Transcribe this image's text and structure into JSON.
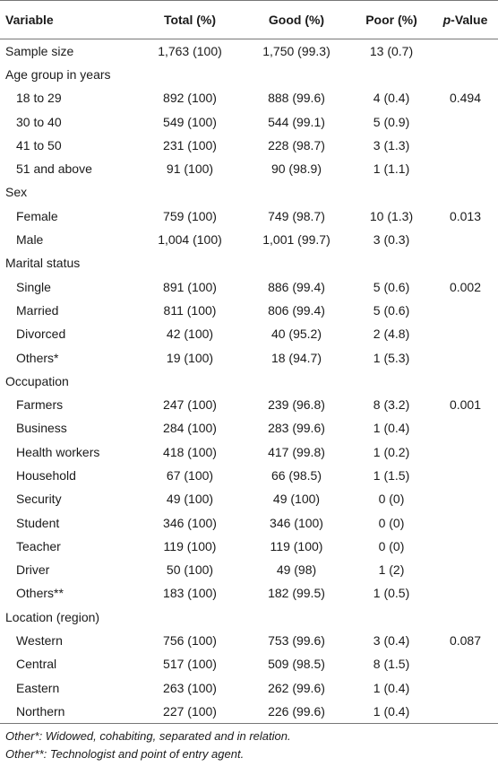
{
  "headers": {
    "variable": "Variable",
    "total": "Total (%)",
    "good": "Good (%)",
    "poor": "Poor (%)",
    "pvalue_italic": "p",
    "pvalue_rest": "-Value"
  },
  "rows": [
    {
      "label": "Sample size",
      "total": "1,763 (100)",
      "good": "1,750 (99.3)",
      "poor": "13 (0.7)",
      "p": ""
    },
    {
      "label": "Age group in years",
      "total": "",
      "good": "",
      "poor": "",
      "p": ""
    },
    {
      "label": "18 to 29",
      "total": "892 (100)",
      "good": "888 (99.6)",
      "poor": "4 (0.4)",
      "p": "0.494"
    },
    {
      "label": "30 to 40",
      "total": "549 (100)",
      "good": "544 (99.1)",
      "poor": "5 (0.9)",
      "p": ""
    },
    {
      "label": "41 to 50",
      "total": "231 (100)",
      "good": "228 (98.7)",
      "poor": "3 (1.3)",
      "p": ""
    },
    {
      "label": "51 and above",
      "total": "91 (100)",
      "good": "90 (98.9)",
      "poor": "1 (1.1)",
      "p": ""
    },
    {
      "label": "Sex",
      "total": "",
      "good": "",
      "poor": "",
      "p": ""
    },
    {
      "label": "Female",
      "total": "759 (100)",
      "good": "749 (98.7)",
      "poor": "10 (1.3)",
      "p": "0.013"
    },
    {
      "label": "Male",
      "total": "1,004 (100)",
      "good": "1,001 (99.7)",
      "poor": "3 (0.3)",
      "p": ""
    },
    {
      "label": "Marital status",
      "total": "",
      "good": "",
      "poor": "",
      "p": ""
    },
    {
      "label": "Single",
      "total": "891 (100)",
      "good": "886 (99.4)",
      "poor": "5 (0.6)",
      "p": "0.002"
    },
    {
      "label": "Married",
      "total": "811 (100)",
      "good": "806 (99.4)",
      "poor": "5 (0.6)",
      "p": ""
    },
    {
      "label": "Divorced",
      "total": "42 (100)",
      "good": "40 (95.2)",
      "poor": "2 (4.8)",
      "p": ""
    },
    {
      "label": "Others*",
      "total": "19 (100)",
      "good": "18 (94.7)",
      "poor": "1 (5.3)",
      "p": ""
    },
    {
      "label": "Occupation",
      "total": "",
      "good": "",
      "poor": "",
      "p": ""
    },
    {
      "label": "Farmers",
      "total": "247 (100)",
      "good": "239 (96.8)",
      "poor": "8 (3.2)",
      "p": "0.001"
    },
    {
      "label": "Business",
      "total": "284 (100)",
      "good": "283 (99.6)",
      "poor": "1 (0.4)",
      "p": ""
    },
    {
      "label": "Health workers",
      "total": "418 (100)",
      "good": "417 (99.8)",
      "poor": "1 (0.2)",
      "p": ""
    },
    {
      "label": "Household",
      "total": "67 (100)",
      "good": "66 (98.5)",
      "poor": "1 (1.5)",
      "p": ""
    },
    {
      "label": "Security",
      "total": "49 (100)",
      "good": "49 (100)",
      "poor": "0 (0)",
      "p": ""
    },
    {
      "label": "Student",
      "total": "346 (100)",
      "good": "346 (100)",
      "poor": "0 (0)",
      "p": ""
    },
    {
      "label": "Teacher",
      "total": "119 (100)",
      "good": "119 (100)",
      "poor": "0 (0)",
      "p": ""
    },
    {
      "label": "Driver",
      "total": "50 (100)",
      "good": "49 (98)",
      "poor": "1 (2)",
      "p": ""
    },
    {
      "label": "Others**",
      "total": "183 (100)",
      "good": "182 (99.5)",
      "poor": "1 (0.5)",
      "p": ""
    },
    {
      "label": "Location (region)",
      "total": "",
      "good": "",
      "poor": "",
      "p": ""
    },
    {
      "label": "Western",
      "total": "756 (100)",
      "good": "753 (99.6)",
      "poor": "3 (0.4)",
      "p": "0.087"
    },
    {
      "label": "Central",
      "total": "517 (100)",
      "good": "509 (98.5)",
      "poor": "8 (1.5)",
      "p": ""
    },
    {
      "label": "Eastern",
      "total": "263 (100)",
      "good": "262 (99.6)",
      "poor": "1 (0.4)",
      "p": ""
    },
    {
      "label": "Northern",
      "total": "227 (100)",
      "good": "226 (99.6)",
      "poor": "1 (0.4)",
      "p": ""
    }
  ],
  "footnotes": [
    "Other*: Widowed, cohabiting, separated and in relation.",
    "Other**: Technologist and point of entry agent."
  ]
}
